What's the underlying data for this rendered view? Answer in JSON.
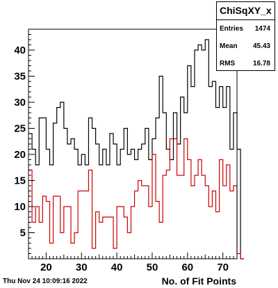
{
  "stats": {
    "title": "ChiSqXY_x",
    "rows": [
      {
        "label": "Entries",
        "value": "1474"
      },
      {
        "label": "Mean",
        "value": "45.43"
      },
      {
        "label": "RMS",
        "value": "16.78"
      }
    ]
  },
  "timestamp": "Thu Nov 24 10:09:16 2022",
  "chart_data": {
    "type": "step-histogram",
    "title": "",
    "xlabel": "No. of Fit Points",
    "ylabel": "",
    "xlim": [
      15,
      74
    ],
    "ylim": [
      0,
      44
    ],
    "xticks": [
      20,
      30,
      40,
      50,
      60,
      70
    ],
    "yticks": [
      5,
      10,
      15,
      20,
      25,
      30,
      35,
      40
    ],
    "bin_width": 1,
    "bin_start": 15,
    "grid": false,
    "series": [
      {
        "color": "#000000",
        "values": [
          24,
          21,
          18,
          27,
          27,
          21,
          18,
          26,
          29,
          30,
          25,
          22,
          23,
          21,
          18,
          20,
          18,
          27,
          25,
          22,
          18,
          21,
          18,
          24,
          22,
          18,
          21,
          25,
          20,
          21,
          19,
          21,
          22,
          25,
          19,
          23,
          27,
          35,
          28,
          21,
          19,
          28,
          22,
          31,
          28,
          37,
          33,
          40,
          41,
          40,
          42,
          33,
          34,
          29,
          33,
          29,
          33,
          21,
          28,
          21,
          0
        ]
      },
      {
        "color": "#cc0000",
        "values": [
          17,
          7,
          10,
          7,
          12,
          11,
          3,
          12,
          12,
          5,
          10,
          10,
          3,
          5,
          13,
          13,
          13,
          17,
          2,
          9,
          7,
          8,
          8,
          8,
          2,
          10,
          10,
          8,
          5,
          10,
          13,
          15,
          14,
          14,
          10,
          20,
          11,
          7,
          16,
          17,
          23,
          23,
          16,
          16,
          23,
          19,
          14,
          16,
          19,
          16,
          14,
          10,
          13,
          9,
          19,
          14,
          18,
          13,
          14,
          1,
          0
        ]
      }
    ]
  }
}
